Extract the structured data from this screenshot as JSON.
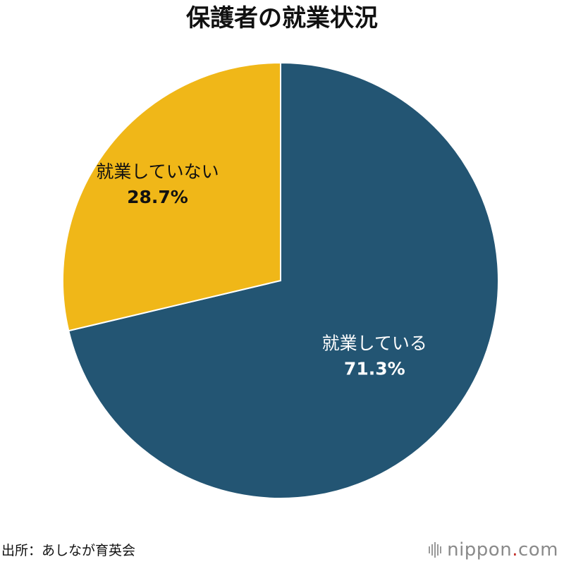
{
  "title": "保護者の就業状況",
  "chart_data": {
    "type": "pie",
    "slices": [
      {
        "label": "就業している",
        "value": 71.3,
        "value_label": "71.3%",
        "color": "#235573",
        "text_color": "#ffffff"
      },
      {
        "label": "就業していない",
        "value": 28.7,
        "value_label": "28.7%",
        "color": "#f0b718",
        "text_color": "#111111"
      }
    ],
    "start": "12 o'clock",
    "direction": "clockwise"
  },
  "source": "出所：あしなが育英会",
  "logo": {
    "name": "nippon",
    "dot": ".",
    "tld": "com"
  }
}
